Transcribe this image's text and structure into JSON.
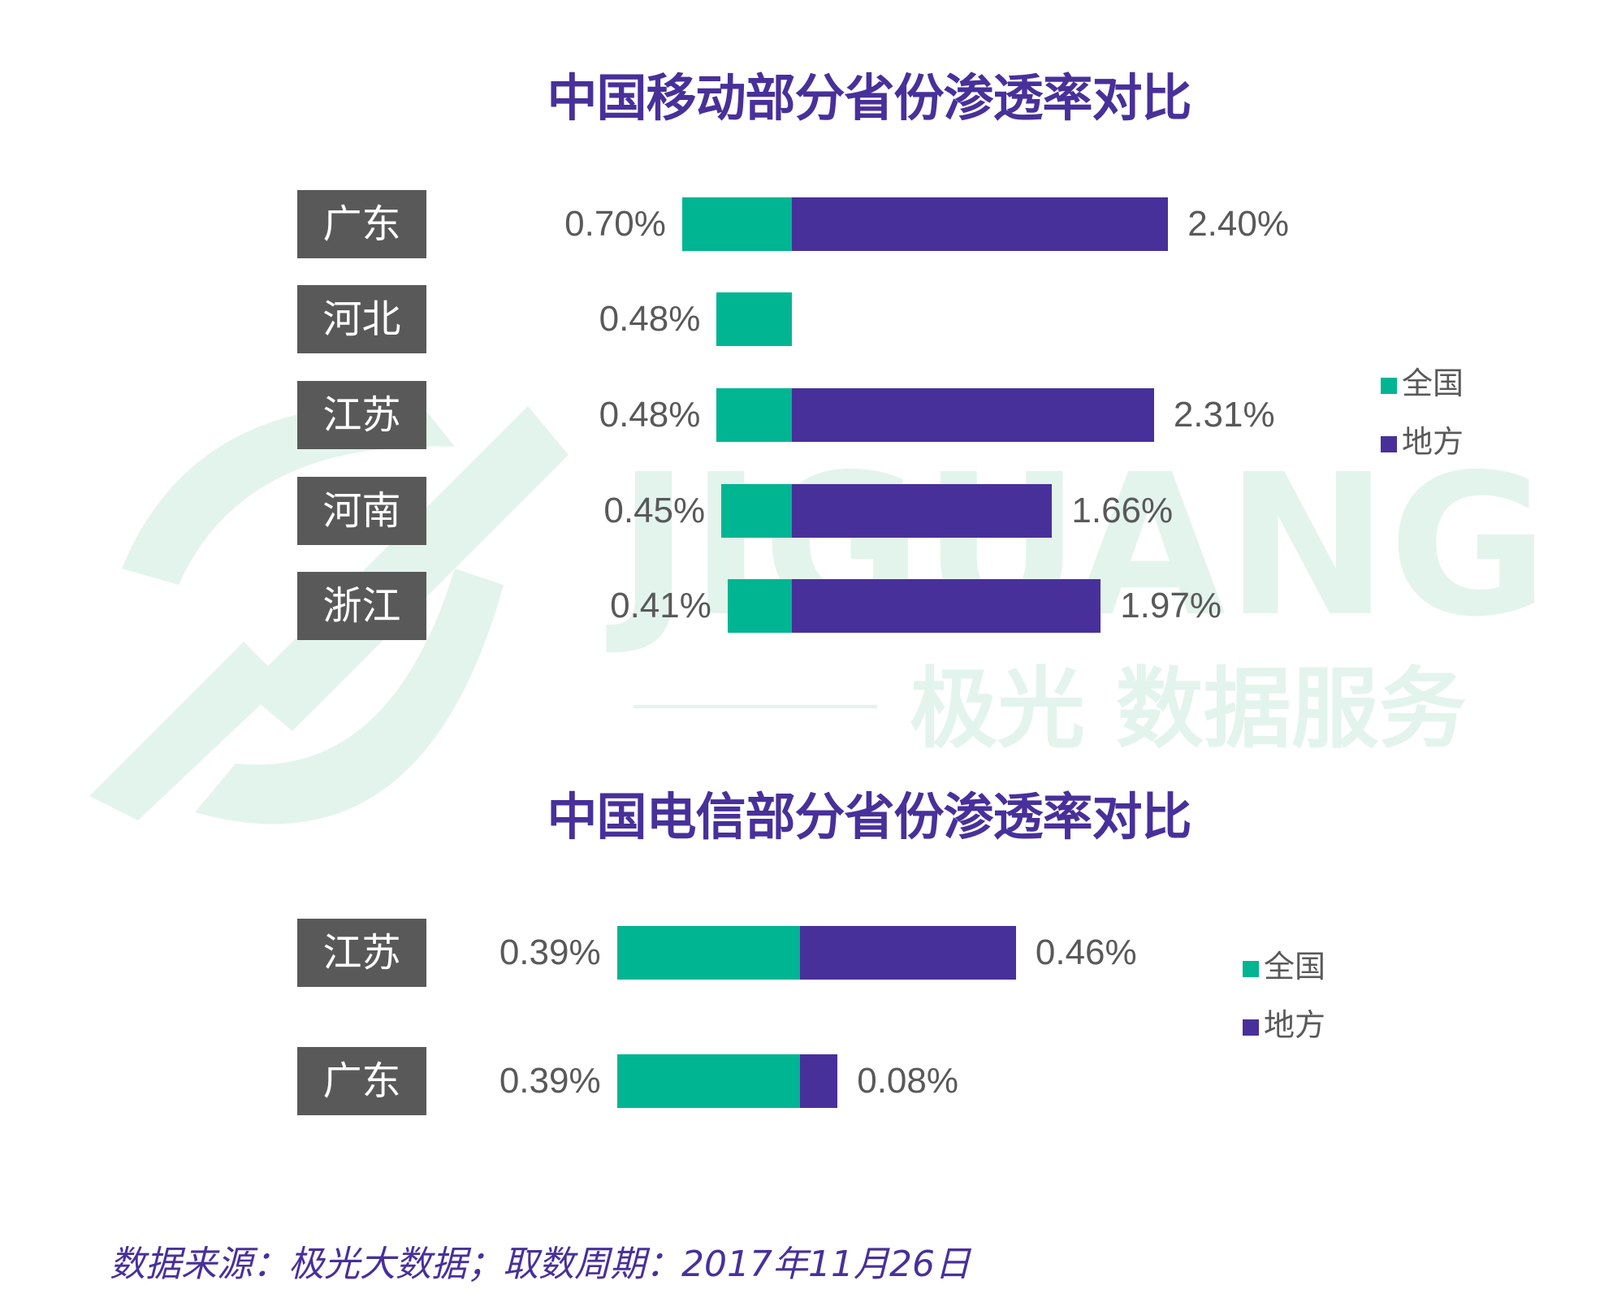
{
  "colors": {
    "national": "#00b592",
    "local": "#48309a",
    "label_bg": "#595959",
    "title": "#48309a",
    "watermark": "#e3f4ec"
  },
  "watermark": {
    "brand": "JIGUANG",
    "tagline": "极光 数据服务"
  },
  "footer": {
    "source": "数据来源：极光大数据；取数周期：2017年11月26日"
  },
  "chart_data": [
    {
      "type": "bar",
      "orientation": "horizontal",
      "stacked": true,
      "title": "中国移动部分省份渗透率对比",
      "categories": [
        "广东",
        "河北",
        "江苏",
        "河南",
        "浙江"
      ],
      "series": [
        {
          "name": "全国",
          "values": [
            0.7,
            0.48,
            0.48,
            0.45,
            0.41
          ],
          "labels": [
            "0.70%",
            "0.48%",
            "0.48%",
            "0.45%",
            "0.41%"
          ]
        },
        {
          "name": "地方",
          "values": [
            2.4,
            null,
            2.31,
            1.66,
            1.97
          ],
          "labels": [
            "2.40%",
            "",
            "2.31%",
            "1.66%",
            "1.97%"
          ]
        }
      ],
      "legend": [
        "全国",
        "地方"
      ],
      "legend_position": "right"
    },
    {
      "type": "bar",
      "orientation": "horizontal",
      "stacked": true,
      "title": "中国电信部分省份渗透率对比",
      "categories": [
        "江苏",
        "广东"
      ],
      "series": [
        {
          "name": "全国",
          "values": [
            0.39,
            0.39
          ],
          "labels": [
            "0.39%",
            "0.39%"
          ]
        },
        {
          "name": "地方",
          "values": [
            0.46,
            0.08
          ],
          "labels": [
            "0.46%",
            "0.08%"
          ]
        }
      ],
      "legend": [
        "全国",
        "地方"
      ],
      "legend_position": "right"
    }
  ]
}
